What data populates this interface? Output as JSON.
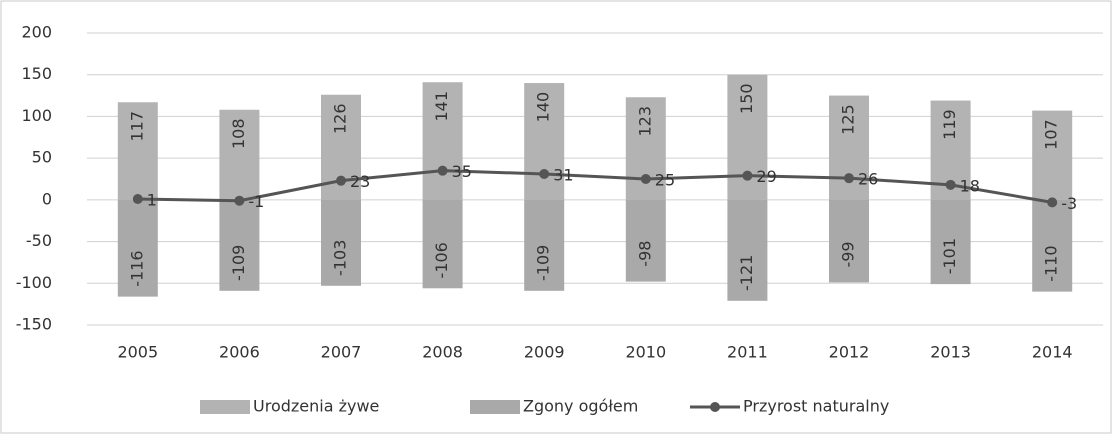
{
  "chart_data": {
    "type": "bar",
    "categories": [
      "2005",
      "2006",
      "2007",
      "2008",
      "2009",
      "2010",
      "2011",
      "2012",
      "2013",
      "2014"
    ],
    "series": [
      {
        "name": "Urodzenia żywe",
        "type": "bar",
        "color": "#b3b3b3",
        "values": [
          117,
          108,
          126,
          141,
          140,
          123,
          150,
          125,
          119,
          107
        ]
      },
      {
        "name": "Zgony ogółem",
        "type": "bar",
        "color": "#a9a9a9",
        "values": [
          -116,
          -109,
          -103,
          -106,
          -109,
          -98,
          -121,
          -99,
          -101,
          -110
        ]
      },
      {
        "name": "Przyrost naturalny",
        "type": "line",
        "color": "#555555",
        "values": [
          1,
          -1,
          23,
          35,
          31,
          25,
          29,
          26,
          18,
          -3
        ]
      }
    ],
    "ylim": [
      -150,
      200
    ],
    "yticks": [
      -150,
      -100,
      -50,
      0,
      50,
      100,
      150,
      200
    ],
    "grid": true,
    "legend": "bottom"
  }
}
